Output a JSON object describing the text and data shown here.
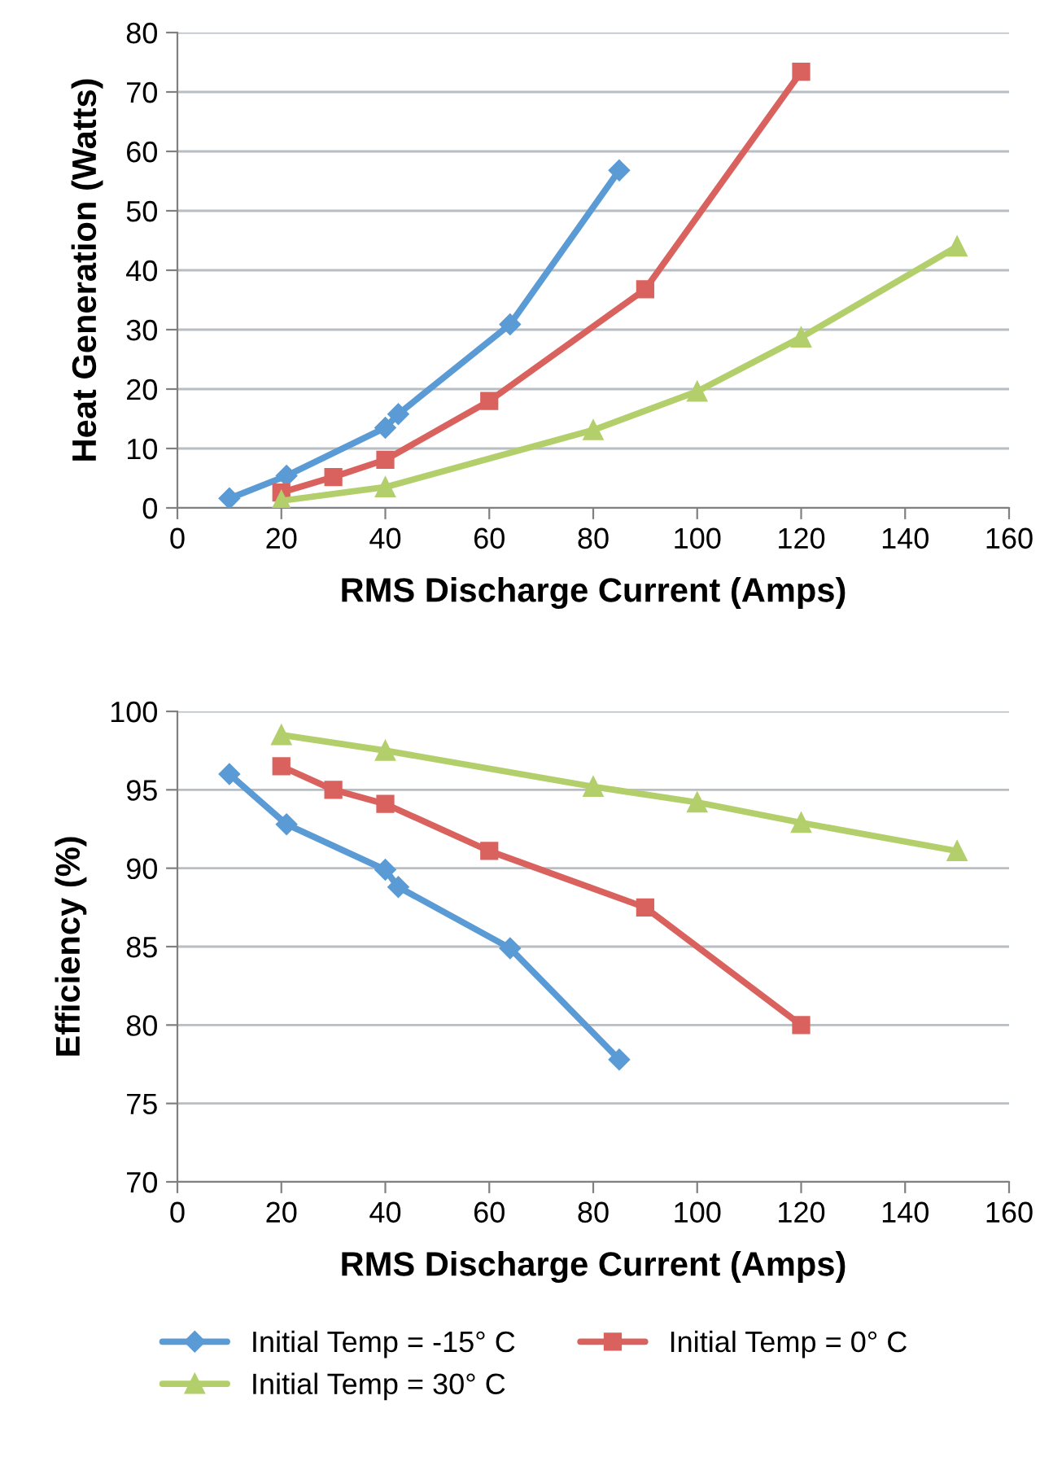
{
  "chart_data": [
    {
      "type": "line",
      "xlabel": "RMS Discharge Current (Amps)",
      "ylabel": "Heat Generation (Watts)",
      "xlim": [
        0,
        160
      ],
      "xticks": [
        0,
        20,
        40,
        60,
        80,
        100,
        120,
        140,
        160
      ],
      "ylim": [
        0,
        80
      ],
      "yticks": [
        0,
        10,
        20,
        30,
        40,
        50,
        60,
        70,
        80
      ],
      "grid": "y",
      "legend": false,
      "series": [
        {
          "color": "#5b9bd5",
          "marker": "diamond",
          "x": [
            10,
            21,
            40,
            42.5,
            64,
            85
          ],
          "values": [
            1.6,
            5.4,
            13.5,
            15.8,
            30.9,
            56.8
          ]
        },
        {
          "color": "#d9625e",
          "marker": "square",
          "x": [
            20,
            30,
            40,
            60,
            90,
            120
          ],
          "values": [
            2.6,
            5.2,
            8.1,
            18.0,
            36.8,
            73.4
          ]
        },
        {
          "color": "#b3cf6b",
          "marker": "triangle",
          "x": [
            20,
            40,
            80,
            100,
            120,
            150
          ],
          "values": [
            1.2,
            3.5,
            13.1,
            19.6,
            28.7,
            44.0
          ]
        }
      ]
    },
    {
      "type": "line",
      "xlabel": "RMS Discharge Current (Amps)",
      "ylabel": "Efficiency (%)",
      "xlim": [
        0,
        160
      ],
      "xticks": [
        0,
        20,
        40,
        60,
        80,
        100,
        120,
        140,
        160
      ],
      "ylim": [
        70,
        100
      ],
      "yticks": [
        70,
        75,
        80,
        85,
        90,
        95,
        100
      ],
      "grid": "y",
      "legend": "bottom",
      "series": [
        {
          "name": "Initial Temp = -15° C",
          "color": "#5b9bd5",
          "marker": "diamond",
          "x": [
            10,
            21,
            40,
            42.5,
            64,
            85
          ],
          "values": [
            96.0,
            92.8,
            89.9,
            88.8,
            84.9,
            77.8
          ]
        },
        {
          "name": "Initial Temp = 0° C",
          "color": "#d9625e",
          "marker": "square",
          "x": [
            20,
            30,
            40,
            60,
            90,
            120
          ],
          "values": [
            96.5,
            95.0,
            94.1,
            91.1,
            87.5,
            80.0
          ]
        },
        {
          "name": "Initial Temp = 30° C",
          "color": "#b3cf6b",
          "marker": "triangle",
          "x": [
            20,
            40,
            80,
            100,
            120,
            150
          ],
          "values": [
            98.5,
            97.5,
            95.2,
            94.2,
            92.9,
            91.1
          ]
        }
      ]
    }
  ]
}
